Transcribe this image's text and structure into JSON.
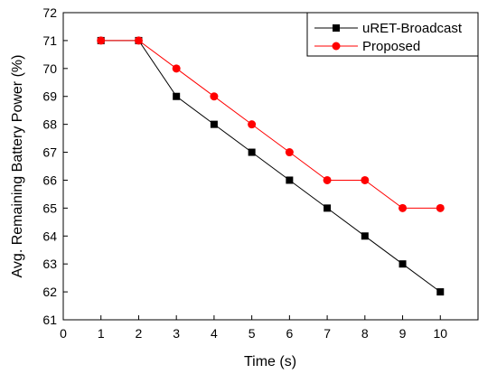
{
  "chart_data": {
    "type": "line",
    "xlabel": "Time (s)",
    "ylabel": "Avg. Remaining Battery Power (%)",
    "xlim": [
      0,
      11
    ],
    "ylim": [
      61,
      72
    ],
    "xticks": [
      0,
      1,
      2,
      3,
      4,
      5,
      6,
      7,
      8,
      9,
      10
    ],
    "yticks": [
      61,
      62,
      63,
      64,
      65,
      66,
      67,
      68,
      69,
      70,
      71,
      72
    ],
    "grid": false,
    "legend_position": "top-right",
    "x": [
      1,
      2,
      3,
      4,
      5,
      6,
      7,
      8,
      9,
      10
    ],
    "series": [
      {
        "name": "uRET-Broadcast",
        "values": [
          71,
          71,
          69,
          68,
          67,
          66,
          65,
          64,
          63,
          62
        ],
        "color": "#000000",
        "marker": "square"
      },
      {
        "name": "Proposed",
        "values": [
          71,
          71,
          70,
          69,
          68,
          67,
          66,
          66,
          65,
          65
        ],
        "color": "#ff0000",
        "marker": "circle"
      }
    ]
  }
}
